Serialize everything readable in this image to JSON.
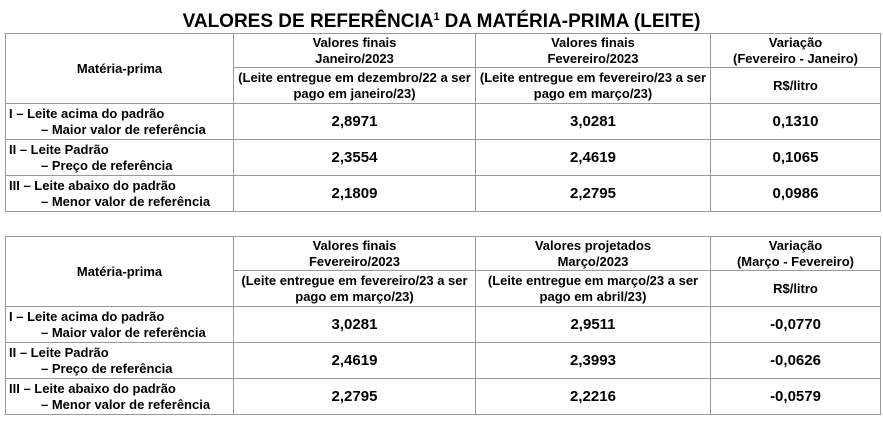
{
  "title": {
    "main": "VALORES DE REFERÊNCIA",
    "superscript": "1",
    "rest": "DA MATÉRIA-PRIMA (LEITE)"
  },
  "tables": [
    {
      "row_header": "Matéria-prima",
      "columns": [
        {
          "line1": "Valores finais",
          "line2": "Janeiro/2023",
          "note": "(Leite entregue em dezembro/22 a ser pago em janeiro/23)"
        },
        {
          "line1": "Valores finais",
          "line2": "Fevereiro/2023",
          "note": "(Leite entregue em fevereiro/23 a ser pago em março/23)"
        },
        {
          "line1": "Variação",
          "line2": "(Fevereiro - Janeiro)",
          "note": "R$/litro"
        }
      ],
      "rows": [
        {
          "label": "I – Leite acima do padrão",
          "sublabel": "–  Maior valor de referência",
          "values": [
            "2,8971",
            "3,0281",
            "0,1310"
          ]
        },
        {
          "label": "II – Leite Padrão",
          "sublabel": "–  Preço de referência",
          "values": [
            "2,3554",
            "2,4619",
            "0,1065"
          ]
        },
        {
          "label": "III – Leite abaixo do padrão",
          "sublabel": "–  Menor valor de referência",
          "values": [
            "2,1809",
            "2,2795",
            "0,0986"
          ]
        }
      ]
    },
    {
      "row_header": "Matéria-prima",
      "columns": [
        {
          "line1": "Valores finais",
          "line2": "Fevereiro/2023",
          "note": "(Leite entregue em fevereiro/23 a ser pago em março/23)"
        },
        {
          "line1": "Valores projetados",
          "line2": "Março/2023",
          "note": "(Leite entregue em março/23 a ser pago em abril/23)"
        },
        {
          "line1": "Variação",
          "line2": "(Março - Fevereiro)",
          "note": "R$/litro"
        }
      ],
      "rows": [
        {
          "label": "I – Leite acima do padrão",
          "sublabel": "–  Maior valor de referência",
          "values": [
            "3,0281",
            "2,9511",
            "-0,0770"
          ]
        },
        {
          "label": "II – Leite Padrão",
          "sublabel": "–  Preço de referência",
          "values": [
            "2,4619",
            "2,3993",
            "-0,0626"
          ]
        },
        {
          "label": "III – Leite abaixo do padrão",
          "sublabel": "–  Menor valor de referência",
          "values": [
            "2,2795",
            "2,2216",
            "-0,0579"
          ]
        }
      ]
    }
  ]
}
